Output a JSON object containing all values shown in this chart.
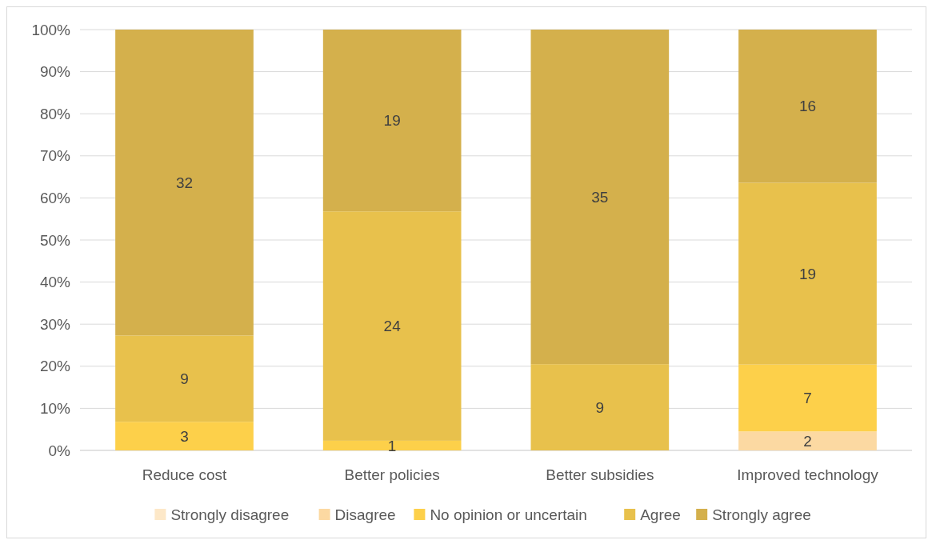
{
  "chart_data": {
    "type": "bar",
    "stacked": true,
    "categories": [
      "Reduce cost",
      "Better policies",
      "Better subsidies",
      "Improved technology"
    ],
    "series": [
      {
        "name": "Strongly disagree",
        "color": "#fde8c8",
        "values": [
          null,
          null,
          null,
          null
        ]
      },
      {
        "name": "Disagree",
        "color": "#fcd9a2",
        "values": [
          null,
          null,
          null,
          4.5
        ]
      },
      {
        "name": "No opinion or uncertain",
        "color": "#fdd04a",
        "values": [
          6.8,
          2.3,
          null,
          15.9
        ]
      },
      {
        "name": "Agree",
        "color": "#e8c14c",
        "values": [
          20.5,
          54.5,
          20.5,
          43.2
        ]
      },
      {
        "name": "Strongly agree",
        "color": "#d4b04c",
        "values": [
          72.7,
          43.2,
          79.5,
          36.4
        ]
      }
    ],
    "annotations": [
      "3",
      "9",
      "32",
      "1",
      "24",
      "19",
      "9",
      "35",
      "2",
      "7",
      "19",
      "16"
    ],
    "ylim": [
      0,
      100
    ],
    "yticks": [
      {
        "value": 0,
        "label": "0%"
      },
      {
        "value": 10,
        "label": "10%"
      },
      {
        "value": 20,
        "label": "20%"
      },
      {
        "value": 30,
        "label": "30%"
      },
      {
        "value": 40,
        "label": "40%"
      },
      {
        "value": 50,
        "label": "50%"
      },
      {
        "value": 60,
        "label": "60%"
      },
      {
        "value": 70,
        "label": "70%"
      },
      {
        "value": 80,
        "label": "80%"
      },
      {
        "value": 90,
        "label": "90%"
      },
      {
        "value": 100,
        "label": "100%"
      }
    ],
    "grid": "y",
    "legend": "bottom"
  }
}
